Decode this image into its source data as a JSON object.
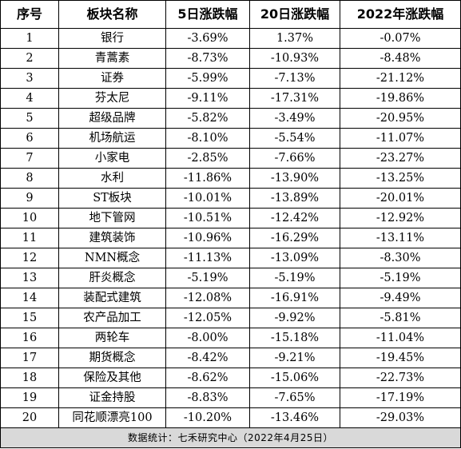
{
  "headers": [
    "序号",
    "板块名称",
    "5日涨跌幅",
    "20日涨跌幅",
    "2022年涨跌幅"
  ],
  "rows": [
    [
      "1",
      "银行",
      "-3.69%",
      "1.37%",
      "-0.07%"
    ],
    [
      "2",
      "青蒿素",
      "-8.73%",
      "-10.93%",
      "-8.48%"
    ],
    [
      "3",
      "证券",
      "-5.99%",
      "-7.13%",
      "-21.12%"
    ],
    [
      "4",
      "芬太尼",
      "-9.11%",
      "-17.31%",
      "-19.86%"
    ],
    [
      "5",
      "超级品牌",
      "-5.82%",
      "-3.49%",
      "-20.95%"
    ],
    [
      "6",
      "机场航运",
      "-8.10%",
      "-5.54%",
      "-11.07%"
    ],
    [
      "7",
      "小家电",
      "-2.85%",
      "-7.66%",
      "-23.27%"
    ],
    [
      "8",
      "水利",
      "-11.86%",
      "-13.90%",
      "-13.25%"
    ],
    [
      "9",
      "ST板块",
      "-10.01%",
      "-13.89%",
      "-20.01%"
    ],
    [
      "10",
      "地下管网",
      "-10.51%",
      "-12.42%",
      "-12.92%"
    ],
    [
      "11",
      "建筑装饰",
      "-10.96%",
      "-16.29%",
      "-13.11%"
    ],
    [
      "12",
      "NMN概念",
      "-11.13%",
      "-13.09%",
      "-8.30%"
    ],
    [
      "13",
      "肝炎概念",
      "-5.19%",
      "-5.19%",
      "-5.19%"
    ],
    [
      "14",
      "装配式建筑",
      "-12.08%",
      "-16.91%",
      "-9.49%"
    ],
    [
      "15",
      "农产品加工",
      "-12.05%",
      "-9.92%",
      "-5.81%"
    ],
    [
      "16",
      "两轮车",
      "-8.00%",
      "-15.18%",
      "-11.04%"
    ],
    [
      "17",
      "期货概念",
      "-8.42%",
      "-9.21%",
      "-19.45%"
    ],
    [
      "18",
      "保险及其他",
      "-8.62%",
      "-15.06%",
      "-22.73%"
    ],
    [
      "19",
      "证金持股",
      "-8.83%",
      "-7.65%",
      "-17.19%"
    ],
    [
      "20",
      "同花顺漂亮100",
      "-10.20%",
      "-13.46%",
      "-29.03%"
    ]
  ],
  "footer": "数据统计：七禾研究中心（2022年4月25日）",
  "colors": {
    "border": "#000000",
    "footer_bg": "#d9d9d9",
    "text": "#000000"
  }
}
